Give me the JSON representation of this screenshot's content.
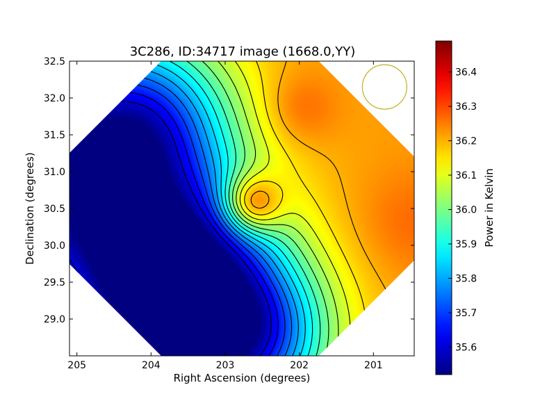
{
  "chart_data": {
    "type": "heatmap",
    "title": "3C286, ID:34717 image (1668.0,YY)",
    "xlabel": "Right Ascension (degrees)",
    "ylabel": "Declination (degrees)",
    "colorbar_label": "Power in Kelvin",
    "colormap": "jet",
    "xlim": [
      205.1,
      200.45
    ],
    "ylim": [
      28.5,
      32.5
    ],
    "clim": [
      35.52,
      36.49
    ],
    "xticks": [
      205,
      204,
      203,
      202,
      201
    ],
    "xtick_labels": [
      "205",
      "204",
      "203",
      "202",
      "201"
    ],
    "yticks": [
      29.0,
      29.5,
      30.0,
      30.5,
      31.0,
      31.5,
      32.0,
      32.5
    ],
    "ytick_labels": [
      "29.0",
      "29.5",
      "30.0",
      "30.5",
      "31.0",
      "31.5",
      "32.0",
      "32.5"
    ],
    "cbar_ticks": [
      35.6,
      35.7,
      35.8,
      35.9,
      36.0,
      36.1,
      36.2,
      36.3,
      36.4
    ],
    "cbar_tick_labels": [
      "35.6",
      "35.7",
      "35.8",
      "35.9",
      "36.0",
      "36.1",
      "36.2",
      "36.3",
      "36.4"
    ],
    "grid": false,
    "contour_levels": [
      35.6,
      35.65,
      35.7,
      35.75,
      35.8,
      35.85,
      35.9,
      35.95,
      36.0,
      36.05,
      36.1,
      36.15,
      36.2,
      36.3,
      36.35,
      36.4,
      36.45
    ],
    "field_center": [
      202.8,
      30.5
    ],
    "field_half_width_deg": 3.05,
    "field_model": {
      "background": 36.22,
      "features": [
        {
          "ra": 202.65,
          "dec": 30.55,
          "amp": 0.3,
          "sigma": 0.28
        },
        {
          "ra": 202.0,
          "dec": 31.85,
          "amp": 0.07,
          "sigma": 0.35
        },
        {
          "ra": 200.5,
          "dec": 30.3,
          "amp": 0.05,
          "sigma": 0.5
        },
        {
          "ra": 205.1,
          "dec": 30.85,
          "amp": -0.62,
          "sigma": 1.25
        },
        {
          "ra": 203.6,
          "dec": 28.8,
          "amp": -0.6,
          "sigma": 1.05
        },
        {
          "ra": 204.0,
          "dec": 31.7,
          "amp": -0.3,
          "sigma": 0.8
        },
        {
          "ra": 203.5,
          "dec": 29.8,
          "amp": -0.28,
          "sigma": 0.8
        },
        {
          "ra": 202.5,
          "dec": 28.8,
          "amp": -0.25,
          "sigma": 0.7
        }
      ]
    },
    "beam_marker": {
      "ra": 200.85,
      "dec": 32.15,
      "radius_deg": 0.3,
      "color": "#bfb020"
    }
  }
}
